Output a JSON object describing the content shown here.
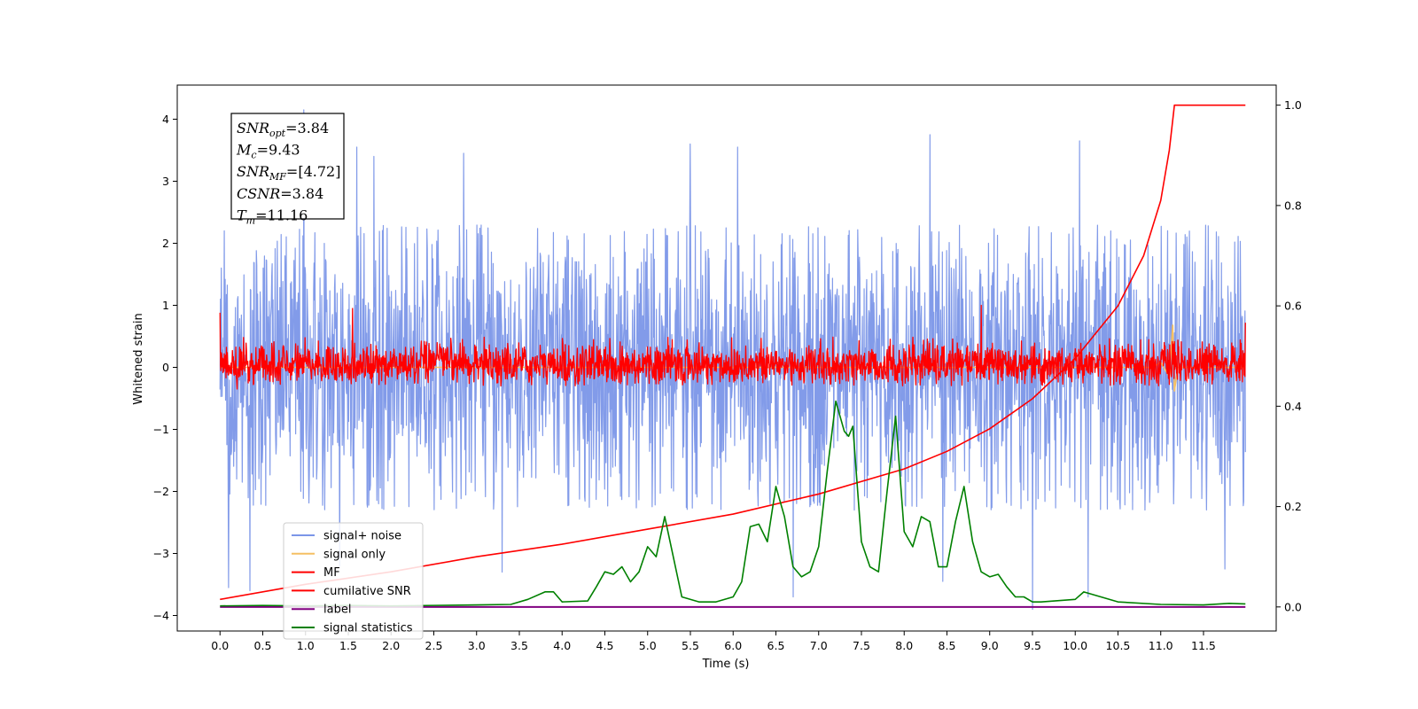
{
  "chart_data": {
    "type": "line",
    "title": "",
    "xlabel": "Time (s)",
    "ylabel": "Whitened strain",
    "ylabel_right": "",
    "xlim": [
      -0.5,
      12.35
    ],
    "ylim": [
      -4.25,
      4.55
    ],
    "ylim_right": [
      -0.048,
      1.04
    ],
    "x_ticks": [
      0.0,
      0.5,
      1.0,
      1.5,
      2.0,
      2.5,
      3.0,
      3.5,
      4.0,
      4.5,
      5.0,
      5.5,
      6.0,
      6.5,
      7.0,
      7.5,
      8.0,
      8.5,
      9.0,
      9.5,
      10.0,
      10.5,
      11.0,
      11.5
    ],
    "x_tick_labels": [
      "0.0",
      "0.5",
      "1.0",
      "1.5",
      "2.0",
      "2.5",
      "3.0",
      "3.5",
      "4.0",
      "4.5",
      "5.0",
      "5.5",
      "6.0",
      "6.5",
      "7.0",
      "7.5",
      "8.0",
      "8.5",
      "9.0",
      "9.5",
      "10.0",
      "10.5",
      "11.0",
      "11.5"
    ],
    "y_ticks": [
      -4,
      -3,
      -2,
      -1,
      0,
      1,
      2,
      3,
      4
    ],
    "y_tick_labels": [
      "−4",
      "−3",
      "−2",
      "−1",
      "0",
      "1",
      "2",
      "3",
      "4"
    ],
    "y_ticks_right": [
      0.0,
      0.2,
      0.4,
      0.6,
      0.8,
      1.0
    ],
    "y_tick_labels_right": [
      "0.0",
      "0.2",
      "0.4",
      "0.6",
      "0.8",
      "1.0"
    ],
    "grid": false,
    "legend_position": "lower-left",
    "legend": [
      {
        "label": "signal+ noise",
        "color": "#7b96e8"
      },
      {
        "label": "signal only",
        "color": "#f5c063"
      },
      {
        "label": "MF",
        "color": "#ff0000"
      },
      {
        "label": "cumilative SNR",
        "color": "#ff0000"
      },
      {
        "label": "label",
        "color": "#800080"
      },
      {
        "label": "signal statistics",
        "color": "#008000"
      }
    ],
    "annotation_box": [
      {
        "base": "SNR",
        "sub": "opt",
        "value": "=3.84"
      },
      {
        "base": "M",
        "sub": "c",
        "value": "=9.43"
      },
      {
        "base": "SNR",
        "sub": "MF",
        "value": "=[4.72]"
      },
      {
        "base": "CSNR",
        "sub": "",
        "value": "=3.84"
      },
      {
        "base": "T",
        "sub": "m",
        "value": "=11.16"
      }
    ],
    "series": [
      {
        "name": "signal+ noise",
        "axis": "left",
        "color": "#7b96e8",
        "x_range": [
          0.0,
          11.99
        ],
        "amplitude_band": [
          -2.3,
          2.3
        ],
        "extreme_peaks": [
          [
            0.05,
            2.2
          ],
          [
            0.98,
            4.15
          ],
          [
            1.6,
            3.55
          ],
          [
            1.8,
            3.4
          ],
          [
            2.85,
            3.45
          ],
          [
            5.5,
            3.6
          ],
          [
            6.05,
            3.55
          ],
          [
            8.3,
            3.75
          ],
          [
            10.05,
            3.65
          ],
          [
            0.1,
            -3.55
          ],
          [
            0.35,
            -3.6
          ],
          [
            1.4,
            -3.2
          ],
          [
            3.3,
            -3.3
          ],
          [
            6.7,
            -3.7
          ],
          [
            8.45,
            -3.45
          ],
          [
            9.5,
            -3.9
          ],
          [
            10.15,
            -3.7
          ],
          [
            11.75,
            -3.25
          ]
        ]
      },
      {
        "name": "signal only",
        "axis": "left",
        "color": "#f5c063",
        "x": [
          0.0,
          10.9,
          11.0,
          11.1,
          11.14,
          11.16,
          11.2,
          11.99
        ],
        "y": [
          0.0,
          0.0,
          0.08,
          -0.15,
          0.68,
          -0.38,
          0.0,
          0.0
        ]
      },
      {
        "name": "MF",
        "axis": "left",
        "color": "#ff0000",
        "x_range": [
          0.0,
          11.99
        ],
        "amplitude_band": [
          -0.3,
          0.5
        ],
        "extreme_peaks": [
          [
            0.0,
            0.88
          ],
          [
            1.55,
            0.95
          ],
          [
            8.9,
            1.0
          ],
          [
            11.99,
            0.72
          ],
          [
            0.2,
            -0.35
          ]
        ]
      },
      {
        "name": "cumilative SNR",
        "axis": "right",
        "color": "#ff0000",
        "x": [
          0.0,
          1.0,
          2.0,
          3.0,
          4.0,
          5.0,
          6.0,
          7.0,
          8.0,
          8.5,
          9.0,
          9.5,
          10.0,
          10.5,
          10.8,
          11.0,
          11.1,
          11.16,
          11.5,
          11.99
        ],
        "y": [
          0.015,
          0.045,
          0.07,
          0.1,
          0.125,
          0.155,
          0.185,
          0.225,
          0.275,
          0.31,
          0.355,
          0.415,
          0.495,
          0.6,
          0.7,
          0.81,
          0.91,
          1.0,
          1.0,
          1.0
        ]
      },
      {
        "name": "label",
        "axis": "right",
        "color": "#800080",
        "x": [
          0.0,
          11.99
        ],
        "y": [
          0.0,
          0.0
        ]
      },
      {
        "name": "signal statistics",
        "axis": "right",
        "color": "#008000",
        "x": [
          0.0,
          0.5,
          1.0,
          1.5,
          2.0,
          2.5,
          3.0,
          3.4,
          3.6,
          3.8,
          3.9,
          4.0,
          4.3,
          4.4,
          4.5,
          4.6,
          4.7,
          4.8,
          4.9,
          5.0,
          5.1,
          5.2,
          5.3,
          5.4,
          5.6,
          5.8,
          6.0,
          6.1,
          6.2,
          6.3,
          6.4,
          6.5,
          6.6,
          6.7,
          6.8,
          6.9,
          7.0,
          7.1,
          7.2,
          7.3,
          7.35,
          7.4,
          7.5,
          7.6,
          7.7,
          7.8,
          7.9,
          8.0,
          8.1,
          8.2,
          8.3,
          8.4,
          8.5,
          8.6,
          8.7,
          8.8,
          8.9,
          9.0,
          9.1,
          9.2,
          9.3,
          9.4,
          9.5,
          9.6,
          10.0,
          10.1,
          10.5,
          11.0,
          11.5,
          11.8,
          11.99
        ],
        "y": [
          0.002,
          0.003,
          0.002,
          0.003,
          0.002,
          0.003,
          0.004,
          0.005,
          0.015,
          0.03,
          0.03,
          0.01,
          0.012,
          0.04,
          0.07,
          0.065,
          0.08,
          0.05,
          0.07,
          0.12,
          0.1,
          0.18,
          0.1,
          0.02,
          0.01,
          0.01,
          0.02,
          0.05,
          0.16,
          0.165,
          0.13,
          0.24,
          0.18,
          0.08,
          0.06,
          0.07,
          0.12,
          0.27,
          0.41,
          0.35,
          0.34,
          0.36,
          0.13,
          0.08,
          0.07,
          0.23,
          0.38,
          0.15,
          0.12,
          0.18,
          0.17,
          0.08,
          0.08,
          0.17,
          0.24,
          0.13,
          0.07,
          0.06,
          0.065,
          0.04,
          0.02,
          0.02,
          0.01,
          0.01,
          0.015,
          0.03,
          0.01,
          0.005,
          0.004,
          0.007,
          0.006
        ]
      }
    ]
  }
}
